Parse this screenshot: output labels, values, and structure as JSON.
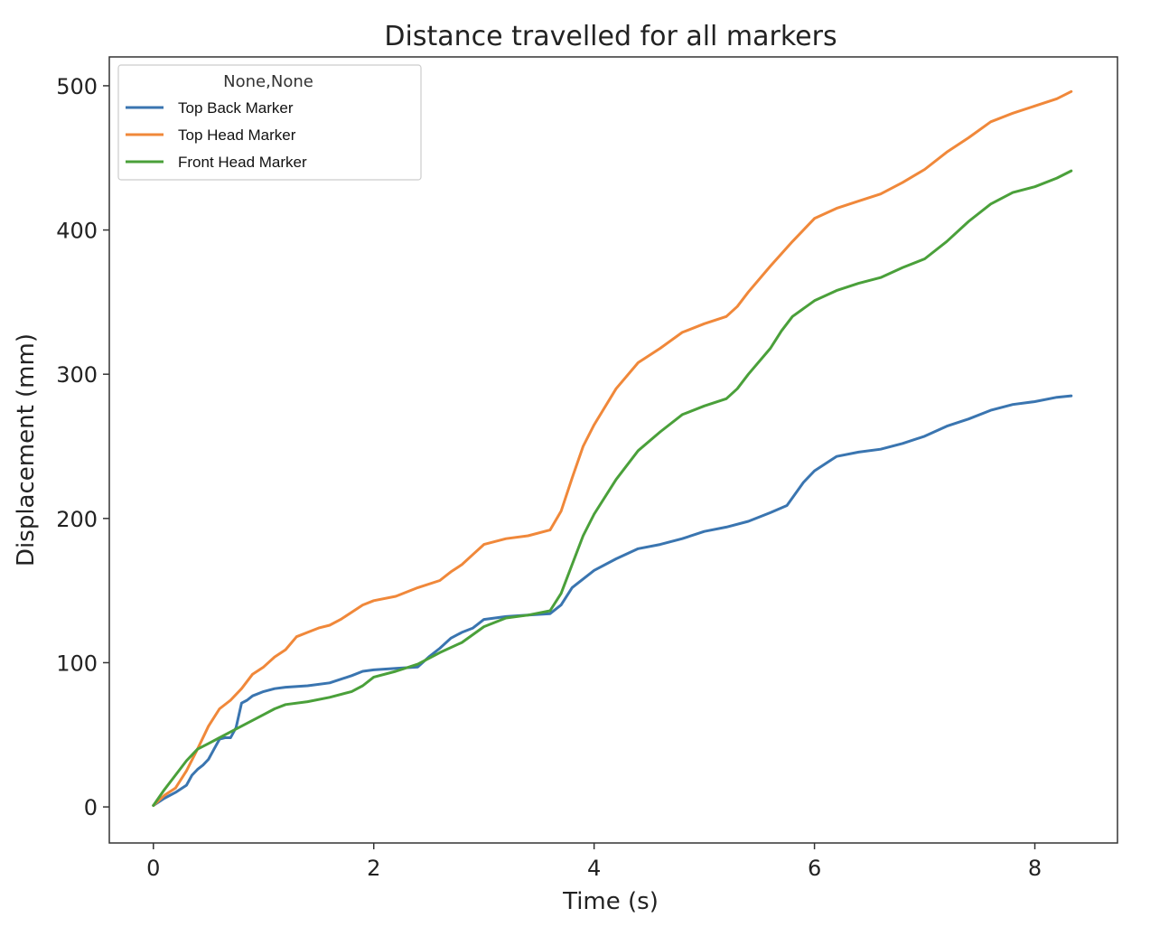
{
  "chart_data": {
    "type": "line",
    "title": "Distance travelled for all markers",
    "xlabel": "Time (s)",
    "ylabel": "Displacement (mm)",
    "xlim": [
      -0.4,
      8.75
    ],
    "ylim": [
      -25,
      520
    ],
    "xticks": [
      0,
      2,
      4,
      6,
      8
    ],
    "yticks": [
      0,
      100,
      200,
      300,
      400,
      500
    ],
    "grid": false,
    "legend": {
      "title": "None,None",
      "placement": "top-left"
    },
    "series": [
      {
        "name": "Top Back Marker",
        "color": "#3a75b0",
        "x": [
          0,
          0.1,
          0.2,
          0.3,
          0.35,
          0.4,
          0.45,
          0.5,
          0.55,
          0.6,
          0.65,
          0.7,
          0.75,
          0.8,
          0.85,
          0.9,
          1.0,
          1.1,
          1.2,
          1.4,
          1.6,
          1.8,
          1.9,
          2.0,
          2.2,
          2.4,
          2.5,
          2.6,
          2.7,
          2.8,
          2.9,
          3.0,
          3.2,
          3.4,
          3.6,
          3.7,
          3.8,
          4.0,
          4.2,
          4.4,
          4.6,
          4.8,
          5.0,
          5.2,
          5.4,
          5.6,
          5.75,
          5.9,
          6.0,
          6.2,
          6.4,
          6.6,
          6.8,
          7.0,
          7.2,
          7.4,
          7.6,
          7.8,
          8.0,
          8.2,
          8.33
        ],
        "y": [
          1,
          6,
          10,
          15,
          22,
          26,
          29,
          33,
          40,
          47,
          48,
          48,
          55,
          72,
          74,
          77,
          80,
          82,
          83,
          84,
          86,
          91,
          94,
          95,
          96,
          97,
          104,
          110,
          117,
          121,
          124,
          130,
          132,
          133,
          134,
          140,
          152,
          164,
          172,
          179,
          182,
          186,
          191,
          194,
          198,
          204,
          209,
          225,
          233,
          243,
          246,
          248,
          252,
          257,
          264,
          269,
          275,
          279,
          281,
          284,
          285
        ]
      },
      {
        "name": "Top Head Marker",
        "color": "#f0883a",
        "x": [
          0,
          0.1,
          0.2,
          0.3,
          0.4,
          0.5,
          0.6,
          0.7,
          0.8,
          0.9,
          1.0,
          1.1,
          1.2,
          1.3,
          1.4,
          1.5,
          1.6,
          1.7,
          1.8,
          1.9,
          2.0,
          2.2,
          2.4,
          2.6,
          2.7,
          2.8,
          2.9,
          3.0,
          3.2,
          3.4,
          3.6,
          3.7,
          3.8,
          3.9,
          4.0,
          4.2,
          4.4,
          4.6,
          4.8,
          5.0,
          5.2,
          5.3,
          5.4,
          5.6,
          5.8,
          6.0,
          6.2,
          6.4,
          6.6,
          6.8,
          7.0,
          7.2,
          7.4,
          7.6,
          7.8,
          8.0,
          8.2,
          8.33
        ],
        "y": [
          1,
          8,
          13,
          25,
          40,
          56,
          68,
          74,
          82,
          92,
          97,
          104,
          109,
          118,
          121,
          124,
          126,
          130,
          135,
          140,
          143,
          146,
          152,
          157,
          163,
          168,
          175,
          182,
          186,
          188,
          192,
          205,
          228,
          250,
          265,
          290,
          308,
          318,
          329,
          335,
          340,
          347,
          357,
          375,
          392,
          408,
          415,
          420,
          425,
          433,
          442,
          454,
          464,
          475,
          481,
          486,
          491,
          496
        ]
      },
      {
        "name": "Front Head Marker",
        "color": "#4aa03a",
        "x": [
          0,
          0.1,
          0.2,
          0.3,
          0.4,
          0.5,
          0.6,
          0.7,
          0.8,
          0.9,
          1.0,
          1.1,
          1.2,
          1.4,
          1.6,
          1.8,
          1.9,
          2.0,
          2.2,
          2.4,
          2.6,
          2.8,
          3.0,
          3.2,
          3.4,
          3.6,
          3.7,
          3.8,
          3.9,
          4.0,
          4.2,
          4.4,
          4.6,
          4.8,
          5.0,
          5.2,
          5.3,
          5.4,
          5.6,
          5.7,
          5.8,
          6.0,
          6.2,
          6.4,
          6.6,
          6.8,
          7.0,
          7.2,
          7.4,
          7.6,
          7.8,
          8.0,
          8.2,
          8.33
        ],
        "y": [
          1,
          12,
          22,
          32,
          40,
          44,
          48,
          52,
          56,
          60,
          64,
          68,
          71,
          73,
          76,
          80,
          84,
          90,
          94,
          99,
          107,
          114,
          125,
          131,
          133,
          136,
          148,
          168,
          188,
          203,
          227,
          247,
          260,
          272,
          278,
          283,
          290,
          300,
          318,
          330,
          340,
          351,
          358,
          363,
          367,
          374,
          380,
          392,
          406,
          418,
          426,
          430,
          436,
          441
        ]
      }
    ]
  }
}
